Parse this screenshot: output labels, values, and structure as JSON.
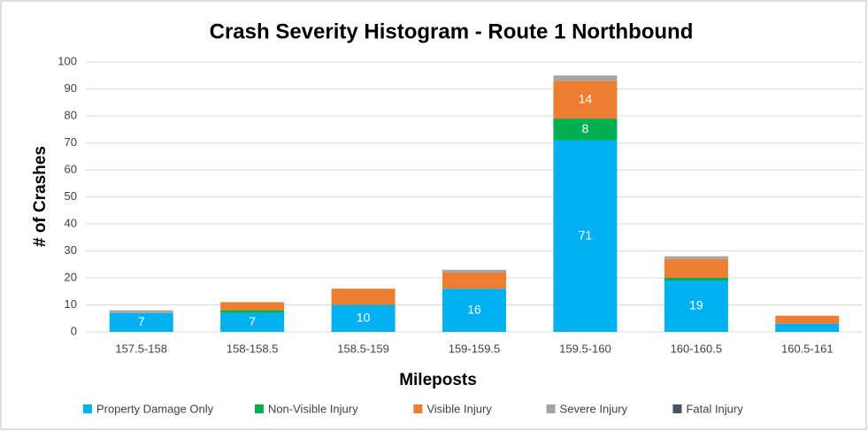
{
  "chart_data": {
    "type": "stacked_bar",
    "title": "Crash Severity Histogram - Route 1 Northbound",
    "x_label": "Mileposts",
    "y_label": "# of Crashes",
    "categories": [
      "157.5-158",
      "158-158.5",
      "158.5-159",
      "159-159.5",
      "159.5-160",
      "160-160.5",
      "160.5-161"
    ],
    "series": [
      {
        "name": "Property Damage Only",
        "color": "#00b0f0",
        "values": [
          7,
          7,
          10,
          16,
          71,
          19,
          3
        ],
        "value_labels": [
          "7",
          "7",
          "10",
          "16",
          "71",
          "19",
          null
        ]
      },
      {
        "name": "Non-Visible Injury",
        "color": "#00b050",
        "values": [
          0,
          1,
          0,
          0,
          8,
          1,
          0
        ],
        "value_labels": [
          null,
          null,
          null,
          null,
          "8",
          null,
          null
        ]
      },
      {
        "name": "Visible Injury",
        "color": "#ed7d31",
        "values": [
          0,
          3,
          6,
          6,
          14,
          7,
          3
        ],
        "value_labels": [
          null,
          null,
          null,
          null,
          "14",
          null,
          null
        ]
      },
      {
        "name": "Severe Injury",
        "color": "#a5a5a5",
        "values": [
          1,
          0,
          0,
          1,
          2,
          1,
          0
        ]
      },
      {
        "name": "Fatal Injury",
        "color": "#44546a",
        "values": [
          0,
          0,
          0,
          0,
          0,
          0,
          0
        ]
      }
    ],
    "ylim": [
      0,
      100
    ],
    "yticks": [
      0,
      10,
      20,
      30,
      40,
      50,
      60,
      70,
      80,
      90,
      100
    ],
    "grid": true,
    "legend": "bottom"
  }
}
